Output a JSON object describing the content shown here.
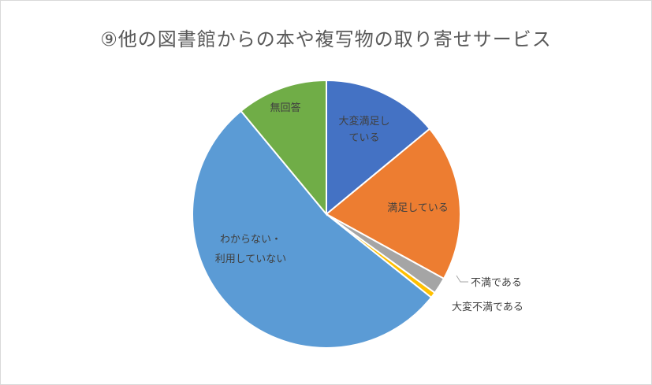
{
  "chart_data": {
    "type": "pie",
    "title": "⑨他の図書館からの本や複写物の取り寄せサービス",
    "categories": [
      "大変満足している",
      "満足している",
      "不満である",
      "大変不満である",
      "わからない・利用していない",
      "無回答"
    ],
    "values": [
      14.0,
      19.0,
      2.0,
      0.7,
      53.3,
      11.0
    ],
    "colors": [
      "#4472c4",
      "#ed7d31",
      "#a5a5a5",
      "#ffc000",
      "#5b9bd5",
      "#70ad47"
    ],
    "labels": [
      [
        "大変満足し",
        "ている"
      ],
      [
        "満足している"
      ],
      [
        "不満である"
      ],
      [
        "大変不満である"
      ],
      [
        "わからない・",
        "利用していない"
      ],
      [
        "無回答"
      ]
    ],
    "legend": "none"
  }
}
